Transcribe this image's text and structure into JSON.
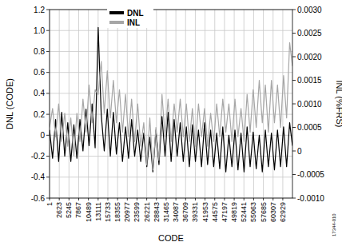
{
  "chart_data": {
    "type": "line",
    "x_label": "CODE",
    "y_label": "DNL (CODE)",
    "y2_label": "INL (%FRS)",
    "annotations": [
      "17344-010"
    ],
    "grid": true,
    "legend": "top",
    "x": [
      1,
      820,
      1640,
      2460,
      3280,
      4100,
      4920,
      5740,
      6560,
      7380,
      8200,
      9020,
      9840,
      10660,
      11480,
      12300,
      13120,
      13940,
      14760,
      15580,
      16400,
      17220,
      18040,
      18860,
      19680,
      20500,
      21320,
      22140,
      22960,
      23780,
      24600,
      25420,
      26240,
      27060,
      27880,
      28700,
      29520,
      30340,
      31160,
      31980,
      32800,
      33620,
      34440,
      35260,
      36080,
      36900,
      37720,
      38540,
      39360,
      40180,
      41000,
      41820,
      42640,
      43460,
      44280,
      45100,
      45920,
      46740,
      47560,
      48380,
      49200,
      50020,
      50840,
      51660,
      52480,
      53300,
      54120,
      54940,
      55760,
      56580,
      57400,
      58220,
      59040,
      59860,
      60680,
      61500,
      62320,
      63140,
      63960,
      64780,
      65536
    ],
    "xlim": [
      1,
      65536
    ],
    "xticks": [
      1,
      2623,
      5245,
      7867,
      10489,
      13111,
      15733,
      18355,
      20977,
      23599,
      26221,
      28843,
      31465,
      34087,
      36709,
      39331,
      41953,
      44575,
      47197,
      49819,
      52441,
      55063,
      57685,
      60307,
      62929
    ],
    "ylim": [
      -0.6,
      1.2
    ],
    "yticks": [
      -0.6,
      -0.4,
      -0.2,
      0,
      0.2,
      0.4,
      0.6,
      0.8,
      {
        "value": 1.0,
        "label": "1.0"
      },
      1.2
    ],
    "y2lim": [
      -0.001,
      0.003
    ],
    "y2ticks": [
      {
        "value": -0.001,
        "label": "-0.0010"
      },
      {
        "value": -0.0005,
        "label": "-0.0005"
      },
      0,
      {
        "value": 0.0005,
        "label": "0.0005"
      },
      {
        "value": 0.001,
        "label": "0.0010"
      },
      {
        "value": 0.0015,
        "label": "0.0015"
      },
      {
        "value": 0.002,
        "label": "0.0020"
      },
      {
        "value": 0.0025,
        "label": "0.0025"
      },
      {
        "value": 0.003,
        "label": "0.0030"
      }
    ],
    "series": [
      {
        "name": "DNL",
        "color": "#000000",
        "values": [
          0.05,
          -0.22,
          0.15,
          -0.25,
          0.22,
          -0.2,
          0.12,
          -0.25,
          0.1,
          -0.22,
          0.15,
          -0.15,
          0.25,
          -0.1,
          0.3,
          -0.12,
          1.03,
          0.2,
          -0.15,
          0.25,
          -0.2,
          0.22,
          -0.18,
          0.12,
          -0.25,
          0.08,
          -0.22,
          0.15,
          -0.2,
          0.05,
          -0.25,
          0.02,
          -0.3,
          -0.02,
          -0.35,
          0.05,
          -0.28,
          0.18,
          -0.2,
          0.22,
          -0.25,
          0.15,
          -0.2,
          0.12,
          -0.25,
          0.08,
          -0.3,
          0.1,
          -0.25,
          0.05,
          -0.3,
          0.12,
          -0.28,
          0.05,
          -0.3,
          0.02,
          -0.32,
          0.08,
          -0.35,
          0.0,
          -0.3,
          0.05,
          -0.33,
          0.02,
          -0.35,
          0.08,
          -0.3,
          0.03,
          -0.32,
          0.0,
          -0.35,
          0.05,
          -0.3,
          0.02,
          -0.33,
          0.05,
          -0.3,
          0.08,
          -0.3,
          0.12,
          -0.1
        ]
      },
      {
        "name": "INL",
        "color": "#a6a6a6",
        "axis": "y2",
        "values": [
          0.0005,
          0.0009,
          0.0003,
          0.001,
          0.0002,
          0.0008,
          0.0001,
          0.0007,
          -0.0001,
          0.0008,
          0.0002,
          0.0011,
          0.0004,
          0.0014,
          0.0006,
          0.0013,
          0.0012,
          0.0019,
          0.0008,
          0.0017,
          0.0007,
          0.0015,
          0.0006,
          0.0013,
          0.0004,
          0.0012,
          0.0003,
          0.0011,
          0.0002,
          0.001,
          0.0001,
          0.0006,
          -0.0003,
          0.0007,
          -0.0004,
          0.0005,
          -0.0002,
          0.0012,
          0.0003,
          0.0011,
          0.0002,
          0.001,
          0.0004,
          0.0011,
          0.0003,
          0.001,
          0.0002,
          0.0009,
          0.0001,
          0.001,
          0.0003,
          0.0009,
          0.0001,
          0.0008,
          0.0002,
          0.001,
          0.0003,
          0.0011,
          0.0004,
          0.001,
          0.0002,
          0.0011,
          0.0003,
          0.0009,
          0.0002,
          0.0012,
          0.0004,
          0.0013,
          0.0005,
          0.0015,
          0.0006,
          0.0014,
          0.0004,
          0.0015,
          0.0006,
          0.0014,
          0.0005,
          0.0016,
          0.0007,
          0.0023,
          0.0018
        ]
      }
    ]
  }
}
